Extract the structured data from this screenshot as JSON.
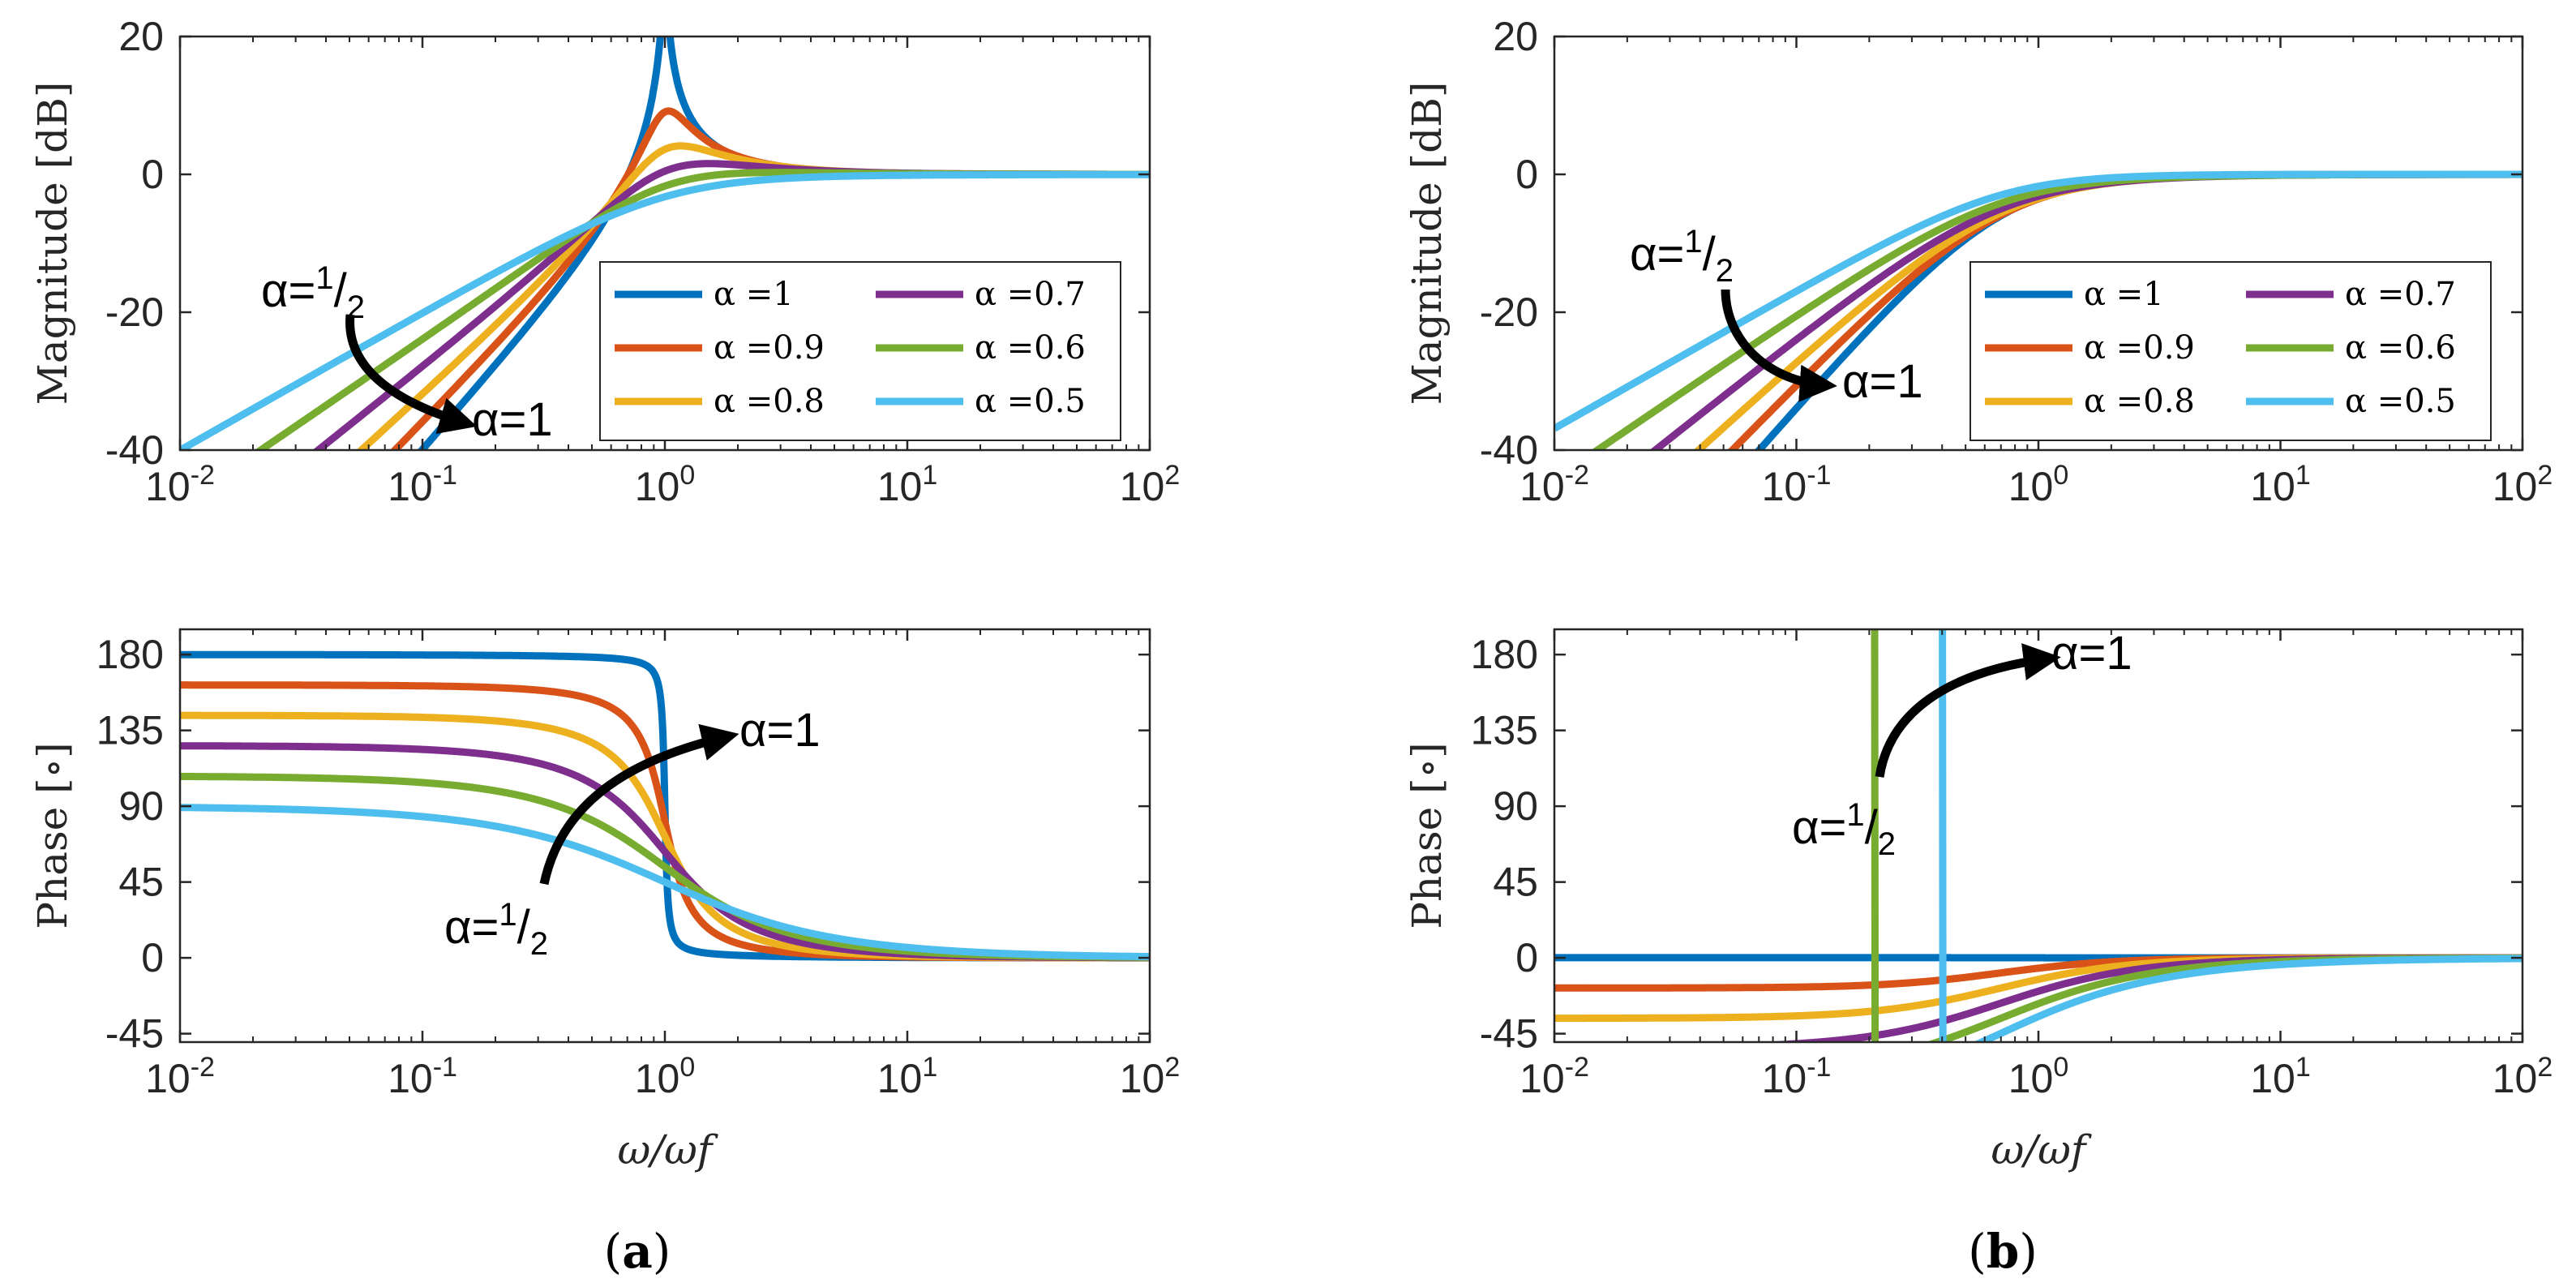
{
  "panel_labels": [
    {
      "open": "(",
      "letter": "a",
      "close": ")"
    },
    {
      "open": "(",
      "letter": "b",
      "close": ")"
    }
  ],
  "chart_data": [
    {
      "id": "a-magnitude",
      "type": "line",
      "panel": "a",
      "title": "",
      "ylabel": "Magnitude [dB]",
      "xlabel": "",
      "xscale": "log",
      "xlim": [
        0.01,
        100
      ],
      "ylim": [
        -40,
        20
      ],
      "x_ticks": [
        {
          "base": "10",
          "exp": "-2"
        },
        {
          "base": "10",
          "exp": "-1"
        },
        {
          "base": "10",
          "exp": "0"
        },
        {
          "base": "10",
          "exp": "1"
        },
        {
          "base": "10",
          "exp": "2"
        }
      ],
      "y_ticks": [
        "20",
        "0",
        "-20",
        "-40"
      ],
      "legend": {
        "position": "center-right",
        "columns": 2
      },
      "series": [
        {
          "name": "α =1",
          "alpha": 1.0,
          "color": "#0072BD"
        },
        {
          "name": "α =0.9",
          "alpha": 0.9,
          "color": "#D95319"
        },
        {
          "name": "α =0.8",
          "alpha": 0.8,
          "color": "#EDB120"
        },
        {
          "name": "α =0.7",
          "alpha": 0.7,
          "color": "#7E2F8E"
        },
        {
          "name": "α =0.6",
          "alpha": 0.6,
          "color": "#77AC30"
        },
        {
          "name": "α =0.5",
          "alpha": 0.5,
          "color": "#4DBEEE"
        }
      ],
      "model": "highpass",
      "resonance": 1.0,
      "damping": 0.02,
      "annotations": [
        {
          "role": "from",
          "main": "α=",
          "num": "1",
          "slash": "/",
          "den": "2"
        },
        {
          "role": "to",
          "main": "α=1"
        }
      ]
    },
    {
      "id": "a-phase",
      "type": "line",
      "panel": "a",
      "title": "",
      "ylabel": "Phase [∘]",
      "xlabel": "ω/ωf",
      "xscale": "log",
      "xlim": [
        0.01,
        100
      ],
      "ylim": [
        -50,
        195
      ],
      "x_ticks": [
        {
          "base": "10",
          "exp": "-2"
        },
        {
          "base": "10",
          "exp": "-1"
        },
        {
          "base": "10",
          "exp": "0"
        },
        {
          "base": "10",
          "exp": "1"
        },
        {
          "base": "10",
          "exp": "2"
        }
      ],
      "y_ticks": [
        "180",
        "135",
        "90",
        "45",
        "0",
        "-45"
      ],
      "series": [
        {
          "name": "α =1",
          "alpha": 1.0,
          "color": "#0072BD"
        },
        {
          "name": "α =0.9",
          "alpha": 0.9,
          "color": "#D95319"
        },
        {
          "name": "α =0.8",
          "alpha": 0.8,
          "color": "#EDB120"
        },
        {
          "name": "α =0.7",
          "alpha": 0.7,
          "color": "#7E2F8E"
        },
        {
          "name": "α =0.6",
          "alpha": 0.6,
          "color": "#77AC30"
        },
        {
          "name": "α =0.5",
          "alpha": 0.5,
          "color": "#4DBEEE"
        }
      ],
      "model": "highpass",
      "resonance": 1.0,
      "damping": 0.02,
      "annotations": [
        {
          "role": "from",
          "main": "α=",
          "num": "1",
          "slash": "/",
          "den": "2"
        },
        {
          "role": "to",
          "main": "α=1"
        }
      ]
    },
    {
      "id": "b-magnitude",
      "type": "line",
      "panel": "b",
      "title": "",
      "ylabel": "Magnitude [dB]",
      "xlabel": "",
      "xscale": "log",
      "xlim": [
        0.01,
        100
      ],
      "ylim": [
        -40,
        20
      ],
      "x_ticks": [
        {
          "base": "10",
          "exp": "-2"
        },
        {
          "base": "10",
          "exp": "-1"
        },
        {
          "base": "10",
          "exp": "0"
        },
        {
          "base": "10",
          "exp": "1"
        },
        {
          "base": "10",
          "exp": "2"
        }
      ],
      "y_ticks": [
        "20",
        "0",
        "-20",
        "-40"
      ],
      "legend": {
        "position": "center-right",
        "columns": 2
      },
      "series": [
        {
          "name": "α =1",
          "alpha": 1.0,
          "color": "#0072BD"
        },
        {
          "name": "α =0.9",
          "alpha": 0.9,
          "color": "#D95319"
        },
        {
          "name": "α =0.8",
          "alpha": 0.8,
          "color": "#EDB120"
        },
        {
          "name": "α =0.7",
          "alpha": 0.7,
          "color": "#7E2F8E"
        },
        {
          "name": "α =0.6",
          "alpha": 0.6,
          "color": "#77AC30"
        },
        {
          "name": "α =0.5",
          "alpha": 0.5,
          "color": "#4DBEEE"
        }
      ],
      "model": "notch",
      "resonance": 0.7,
      "damping": 0.004,
      "annotations": [
        {
          "role": "from",
          "main": "α=",
          "num": "1",
          "slash": "/",
          "den": "2"
        },
        {
          "role": "to",
          "main": "α=1"
        }
      ]
    },
    {
      "id": "b-phase",
      "type": "line",
      "panel": "b",
      "title": "",
      "ylabel": "Phase [∘]",
      "xlabel": "ω/ωf",
      "xscale": "log",
      "xlim": [
        0.01,
        100
      ],
      "ylim": [
        -50,
        195
      ],
      "x_ticks": [
        {
          "base": "10",
          "exp": "-2"
        },
        {
          "base": "10",
          "exp": "-1"
        },
        {
          "base": "10",
          "exp": "0"
        },
        {
          "base": "10",
          "exp": "1"
        },
        {
          "base": "10",
          "exp": "2"
        }
      ],
      "y_ticks": [
        "180",
        "135",
        "90",
        "45",
        "0",
        "-45"
      ],
      "series": [
        {
          "name": "α =1",
          "alpha": 1.0,
          "color": "#0072BD"
        },
        {
          "name": "α =0.9",
          "alpha": 0.9,
          "color": "#D95319"
        },
        {
          "name": "α =0.8",
          "alpha": 0.8,
          "color": "#EDB120"
        },
        {
          "name": "α =0.7",
          "alpha": 0.7,
          "color": "#7E2F8E"
        },
        {
          "name": "α =0.6",
          "alpha": 0.6,
          "color": "#77AC30"
        },
        {
          "name": "α =0.5",
          "alpha": 0.5,
          "color": "#4DBEEE"
        }
      ],
      "model": "notch",
      "resonance": 0.7,
      "damping": 0.004,
      "annotations": [
        {
          "role": "from",
          "main": "α=",
          "num": "1",
          "slash": "/",
          "den": "2"
        },
        {
          "role": "to",
          "main": "α=1"
        }
      ]
    }
  ]
}
